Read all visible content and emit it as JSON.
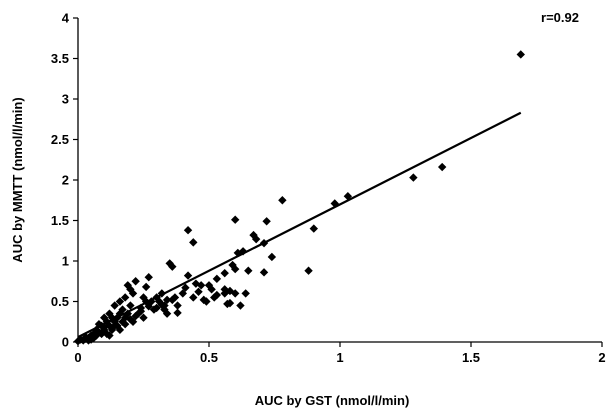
{
  "chart_data": {
    "type": "scatter",
    "xlabel": "AUC by GST (nmol/l/min)",
    "ylabel": "AUC by MMTT (nmol/l/min)",
    "annotation": "r=0.92",
    "xlim": [
      0,
      2
    ],
    "ylim": [
      0,
      4
    ],
    "x_ticks": [
      "0",
      "0.5",
      "1",
      "1.5",
      "2"
    ],
    "y_ticks": [
      "0",
      "0.5",
      "1",
      "1.5",
      "2",
      "2.5",
      "3",
      "3.5",
      "4"
    ],
    "grid": false,
    "marker": "diamond",
    "colors": {
      "marker": "#000000",
      "line": "#000000",
      "axis": "#000000"
    },
    "trendline": {
      "x": [
        0,
        1.69
      ],
      "y": [
        0.06,
        2.83
      ]
    },
    "points": {
      "x": [
        1.69,
        1.39,
        1.28,
        1.03,
        0.98,
        0.9,
        0.88,
        0.78,
        0.74,
        0.72,
        0.71,
        0.71,
        0.68,
        0.67,
        0.65,
        0.64,
        0.63,
        0.62,
        0.6,
        0.61,
        0.6,
        0.59,
        0.58,
        0.57,
        0.56,
        0.56,
        0.53,
        0.52,
        0.51,
        0.49,
        0.47,
        0.44,
        0.42,
        0.41,
        0.4,
        0.38,
        0.37,
        0.36,
        0.35,
        0.34,
        0.34,
        0.33,
        0.32,
        0.31,
        0.3,
        0.29,
        0.27,
        0.26,
        0.26,
        0.25,
        0.24,
        0.23,
        0.22,
        0.21,
        0.2,
        0.2,
        0.19,
        0.19,
        0.18,
        0.18,
        0.17,
        0.17,
        0.16,
        0.16,
        0.15,
        0.15,
        0.14,
        0.14,
        0.13,
        0.13,
        0.12,
        0.12,
        0.11,
        0.11,
        0.1,
        0.1,
        0.09,
        0.09,
        0.08,
        0.08,
        0.07,
        0.07,
        0.06,
        0.06,
        0.05,
        0.05,
        0.04,
        0.03,
        0.02,
        0.01,
        0.0,
        0.42,
        0.45,
        0.58,
        0.6,
        0.5,
        0.53,
        0.56,
        0.44,
        0.28,
        0.3,
        0.24,
        0.22,
        0.2,
        0.32,
        0.36,
        0.46,
        0.14,
        0.1,
        0.07,
        0.03,
        0.21,
        0.25,
        0.33,
        0.18,
        0.38,
        0.27,
        0.48,
        0.16,
        0.12,
        0.06,
        0.04
      ],
      "y": [
        3.55,
        2.16,
        2.03,
        1.8,
        1.71,
        1.4,
        0.88,
        1.75,
        1.05,
        1.49,
        1.22,
        0.86,
        1.27,
        1.32,
        0.88,
        0.6,
        1.12,
        0.45,
        1.51,
        1.1,
        0.9,
        0.95,
        0.63,
        0.47,
        0.85,
        0.6,
        0.78,
        0.55,
        0.65,
        0.5,
        0.7,
        1.23,
        1.38,
        0.67,
        0.6,
        0.45,
        0.55,
        0.93,
        0.97,
        0.52,
        0.35,
        0.45,
        0.6,
        0.5,
        0.55,
        0.4,
        0.8,
        0.68,
        0.5,
        0.55,
        0.42,
        0.35,
        0.75,
        0.6,
        0.65,
        0.45,
        0.7,
        0.35,
        0.55,
        0.3,
        0.4,
        0.25,
        0.5,
        0.35,
        0.3,
        0.2,
        0.45,
        0.25,
        0.3,
        0.15,
        0.35,
        0.2,
        0.25,
        0.1,
        0.3,
        0.15,
        0.2,
        0.1,
        0.22,
        0.12,
        0.15,
        0.08,
        0.1,
        0.05,
        0.08,
        0.03,
        0.05,
        0.04,
        0.02,
        0.03,
        0.01,
        0.82,
        0.72,
        0.48,
        0.6,
        0.7,
        0.58,
        0.65,
        0.55,
        0.5,
        0.42,
        0.38,
        0.32,
        0.28,
        0.46,
        0.52,
        0.62,
        0.2,
        0.18,
        0.12,
        0.06,
        0.25,
        0.3,
        0.4,
        0.22,
        0.36,
        0.44,
        0.52,
        0.15,
        0.08,
        0.06,
        0.02
      ]
    }
  }
}
